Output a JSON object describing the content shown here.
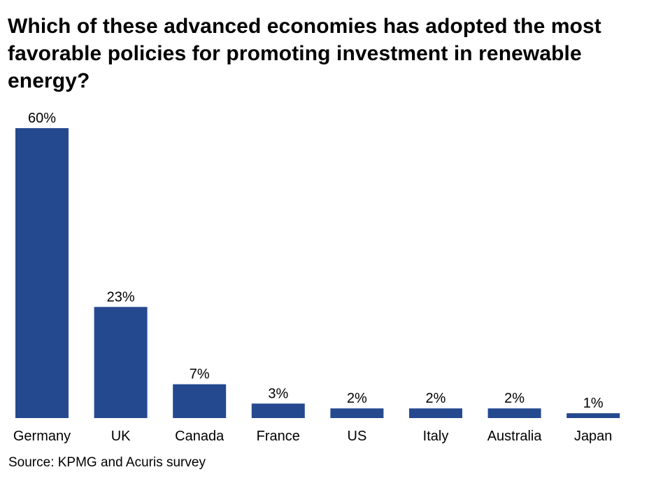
{
  "chart_data": {
    "type": "bar",
    "title": "Which of these advanced economies has adopted the most favorable policies for promoting investment in renewable energy?",
    "categories": [
      "Germany",
      "UK",
      "Canada",
      "France",
      "US",
      "Italy",
      "Australia",
      "Japan"
    ],
    "values": [
      60,
      23,
      7,
      3,
      2,
      2,
      2,
      1
    ],
    "value_labels": [
      "60%",
      "23%",
      "7%",
      "3%",
      "2%",
      "2%",
      "2%",
      "1%"
    ],
    "unit": "%",
    "xlabel": "",
    "ylabel": "",
    "ylim": [
      0,
      60
    ],
    "grid": false,
    "legend": "none",
    "bar_color": "#25498f"
  },
  "source": "Source: KPMG and Acuris survey"
}
